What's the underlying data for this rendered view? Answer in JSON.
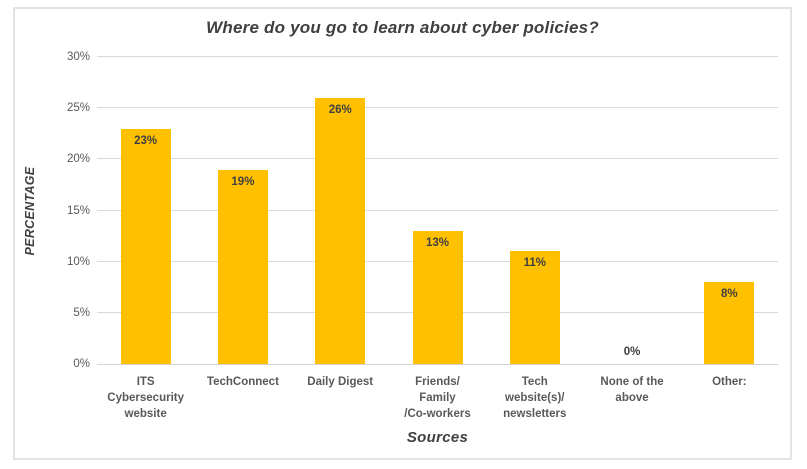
{
  "chart_data": {
    "type": "bar",
    "title": "Where do you go to learn about cyber policies?",
    "xlabel": "Sources",
    "ylabel": "PERCENTAGE",
    "categories": [
      [
        "ITS",
        "Cybersecurity",
        "website"
      ],
      [
        "TechConnect"
      ],
      [
        "Daily Digest"
      ],
      [
        "Friends/",
        "Family",
        "/Co-workers"
      ],
      [
        "Tech",
        "website(s)/",
        "newsletters"
      ],
      [
        "None of the",
        "above"
      ],
      [
        "Other:"
      ]
    ],
    "values": [
      23,
      19,
      26,
      13,
      11,
      0,
      8
    ],
    "bar_labels": [
      "23%",
      "19%",
      "26%",
      "13%",
      "11%",
      "0%",
      "8%"
    ],
    "ylim": [
      0,
      30
    ],
    "ytick_values": [
      0,
      5,
      10,
      15,
      20,
      25,
      30
    ],
    "ytick_labels": [
      "0%",
      "5%",
      "10%",
      "15%",
      "20%",
      "25%",
      "30%"
    ],
    "grid": true,
    "legend": false,
    "colors": {
      "bar": "#FFC000",
      "gridline": "#D9D9D9",
      "baseline": "#D4D4D4",
      "axis_text": "#595959",
      "title_text": "#404040",
      "value_label_text": "#3F3F3F",
      "frame_border": "#E3E3E3",
      "background": "#FFFFFF"
    }
  }
}
